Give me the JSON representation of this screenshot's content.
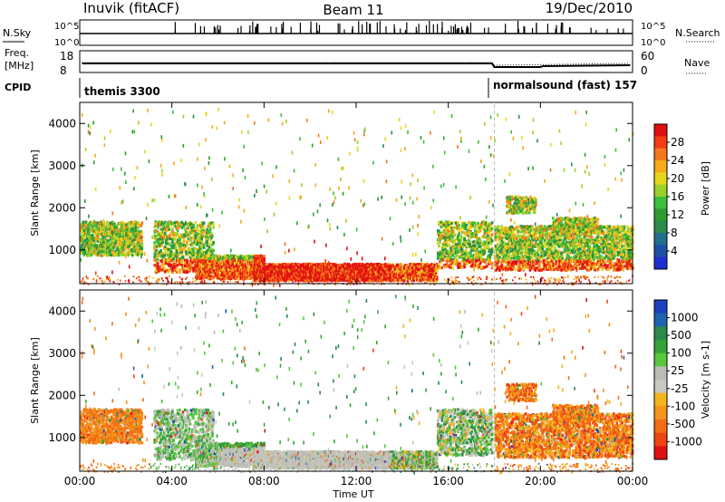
{
  "header": {
    "station": "Inuvik (fitACF)",
    "beam": "Beam 11",
    "date": "19/Dec/2010"
  },
  "top_panels": {
    "nsky": {
      "label": "N.Sky",
      "left_ticks": [
        "10^5",
        "10^0"
      ],
      "right_label": "N.Search",
      "right_ticks": [
        "10^5",
        "10^0"
      ]
    },
    "freq": {
      "label_top": "Freq.",
      "label_bottom": "[MHz]",
      "left_ticks": [
        "18",
        "8"
      ],
      "right_label": "Nave",
      "right_ticks": [
        "60",
        "0"
      ]
    },
    "cpid": {
      "label": "CPID",
      "segments": [
        {
          "text": "themis 3300",
          "start_hour": 0
        },
        {
          "text": "normalsound (fast) 157",
          "start_hour": 18
        }
      ]
    }
  },
  "colorbars": {
    "power": {
      "label": "Power [dB]",
      "ticks": [
        "28",
        "24",
        "20",
        "16",
        "12",
        "8",
        "4"
      ],
      "colors": [
        "#e01010",
        "#f53c14",
        "#f4781c",
        "#f6aa1a",
        "#e8d61e",
        "#9bd22a",
        "#3cbf3c",
        "#2f9b2f",
        "#2b8a4c",
        "#1f6f8f",
        "#1e4fa8",
        "#1c2fd0"
      ]
    },
    "velocity": {
      "label": "Velocity [m s-1]",
      "ticks": [
        "1000",
        "500",
        "100",
        "25",
        "-25",
        "-100",
        "-500",
        "-1000"
      ],
      "colors": [
        "#1c3fbf",
        "#1e62b0",
        "#2b8a4c",
        "#35a33a",
        "#58c73a",
        "#bcbcb4",
        "#c8c8c0",
        "#f4b41c",
        "#f4941c",
        "#f46c14",
        "#ef4414",
        "#e01010"
      ]
    }
  },
  "chart_data": [
    {
      "type": "heatmap",
      "title": "Power",
      "xlabel": "",
      "ylabel": "Slant Range [km]",
      "x_ticks": [
        "00:00",
        "04:00",
        "08:00",
        "12:00",
        "16:00",
        "20:00",
        "00:00"
      ],
      "y_ticks": [
        "1000",
        "2000",
        "3000",
        "4000"
      ],
      "xlim": [
        0,
        24
      ],
      "ylim": [
        200,
        4500
      ],
      "colorbar_range_db": [
        0,
        30
      ]
    },
    {
      "type": "heatmap",
      "title": "Velocity",
      "xlabel": "Time UT",
      "ylabel": "Slant Range [km]",
      "x_ticks": [
        "00:00",
        "04:00",
        "08:00",
        "12:00",
        "16:00",
        "20:00",
        "00:00"
      ],
      "y_ticks": [
        "1000",
        "2000",
        "3000",
        "4000"
      ],
      "xlim": [
        0,
        24
      ],
      "ylim": [
        200,
        4500
      ],
      "colorbar_range_ms": [
        -1000,
        1000
      ]
    }
  ]
}
